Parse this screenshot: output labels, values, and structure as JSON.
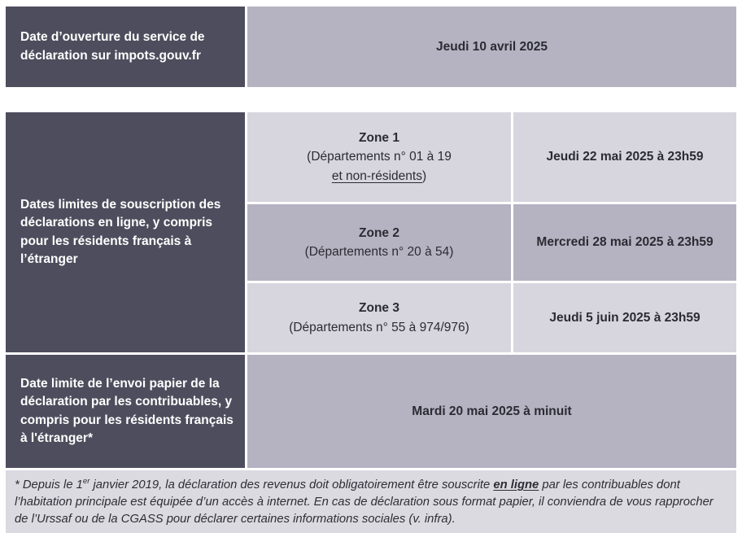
{
  "colors": {
    "dark_cell": "#4e4d5d",
    "medium_cell": "#b5b3c1",
    "light_cell": "#d7d6de",
    "footnote_bg": "#dbdae1",
    "text_dark": "#2b2b33",
    "text_white": "#ffffff"
  },
  "opening": {
    "label": "Date d’ouverture du service de déclaration sur impots.gouv.fr",
    "value": "Jeudi 10 avril 2025"
  },
  "deadlines": {
    "online_label": "Dates limites de souscription des déclarations en ligne, y compris pour les résidents français à l’étranger",
    "zones": [
      {
        "name": "Zone 1",
        "detail_line1": "(Départements n° 01 à 19",
        "detail_underlined": "et non-résidents",
        "detail_suffix": ")",
        "date": "Jeudi 22 mai 2025 à 23h59"
      },
      {
        "name": "Zone 2",
        "detail_line1": "(Départements n° 20 à 54)",
        "date": "Mercredi 28 mai 2025 à 23h59"
      },
      {
        "name": "Zone 3",
        "detail_line1": "(Départements n° 55 à 974/976)",
        "date": "Jeudi 5 juin 2025 à 23h59"
      }
    ],
    "paper_label": "Date limite de l’envoi papier de la déclaration par les contribuables, y compris pour les résidents français à l'étranger*",
    "paper_value": "Mardi 20 mai 2025 à minuit"
  },
  "footnote": {
    "part1": "* Depuis le 1",
    "superscript": "er",
    "part2": " janvier 2019, la déclaration des revenus doit obligatoirement être souscrite ",
    "emphasis": "en ligne",
    "part3": " par les contribuables dont l’habitation principale est équipée d’un accès à internet. En cas de déclaration sous format papier, il conviendra de vous rapprocher de l’Urssaf ou de la CGASS pour déclarer certaines informations sociales (v. infra)."
  }
}
